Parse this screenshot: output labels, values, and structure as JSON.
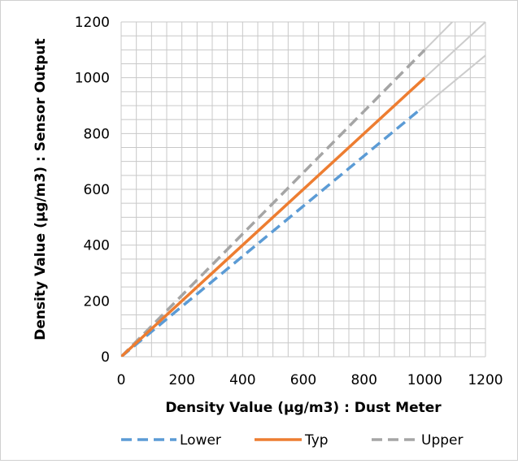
{
  "chart_data": {
    "type": "line",
    "xlabel": "Density Value (μg/m3) :  Dust Meter",
    "ylabel": "Density Value (μg/m3) :  Sensor Output",
    "xlim": [
      0,
      1200
    ],
    "ylim": [
      0,
      1200
    ],
    "x_ticks": [
      "0",
      "200",
      "400",
      "600",
      "800",
      "1000",
      "1200"
    ],
    "y_ticks": [
      "0",
      "200",
      "400",
      "600",
      "800",
      "1000",
      "1200"
    ],
    "grid": true,
    "minor_grid_step": 50,
    "legend_position": "bottom",
    "series": [
      {
        "name": "Lower",
        "color": "#5b9bd5",
        "dash": "dashed",
        "x": [
          0,
          980
        ],
        "y": [
          0,
          882
        ]
      },
      {
        "name": "Typ",
        "color": "#ed7d31",
        "dash": "solid",
        "x": [
          0,
          1000
        ],
        "y": [
          0,
          1000
        ]
      },
      {
        "name": "Upper",
        "color": "#a5a5a5",
        "dash": "dashed",
        "x": [
          0,
          1000
        ],
        "y": [
          0,
          1100
        ]
      }
    ],
    "reference_lines": [
      {
        "color": "#cccccc",
        "x": [
          1000,
          1200
        ],
        "y": [
          1100,
          1320
        ]
      },
      {
        "color": "#cccccc",
        "x": [
          1000,
          1200
        ],
        "y": [
          1000,
          1200
        ]
      },
      {
        "color": "#cccccc",
        "x": [
          980,
          1200
        ],
        "y": [
          882,
          1080
        ]
      }
    ]
  }
}
